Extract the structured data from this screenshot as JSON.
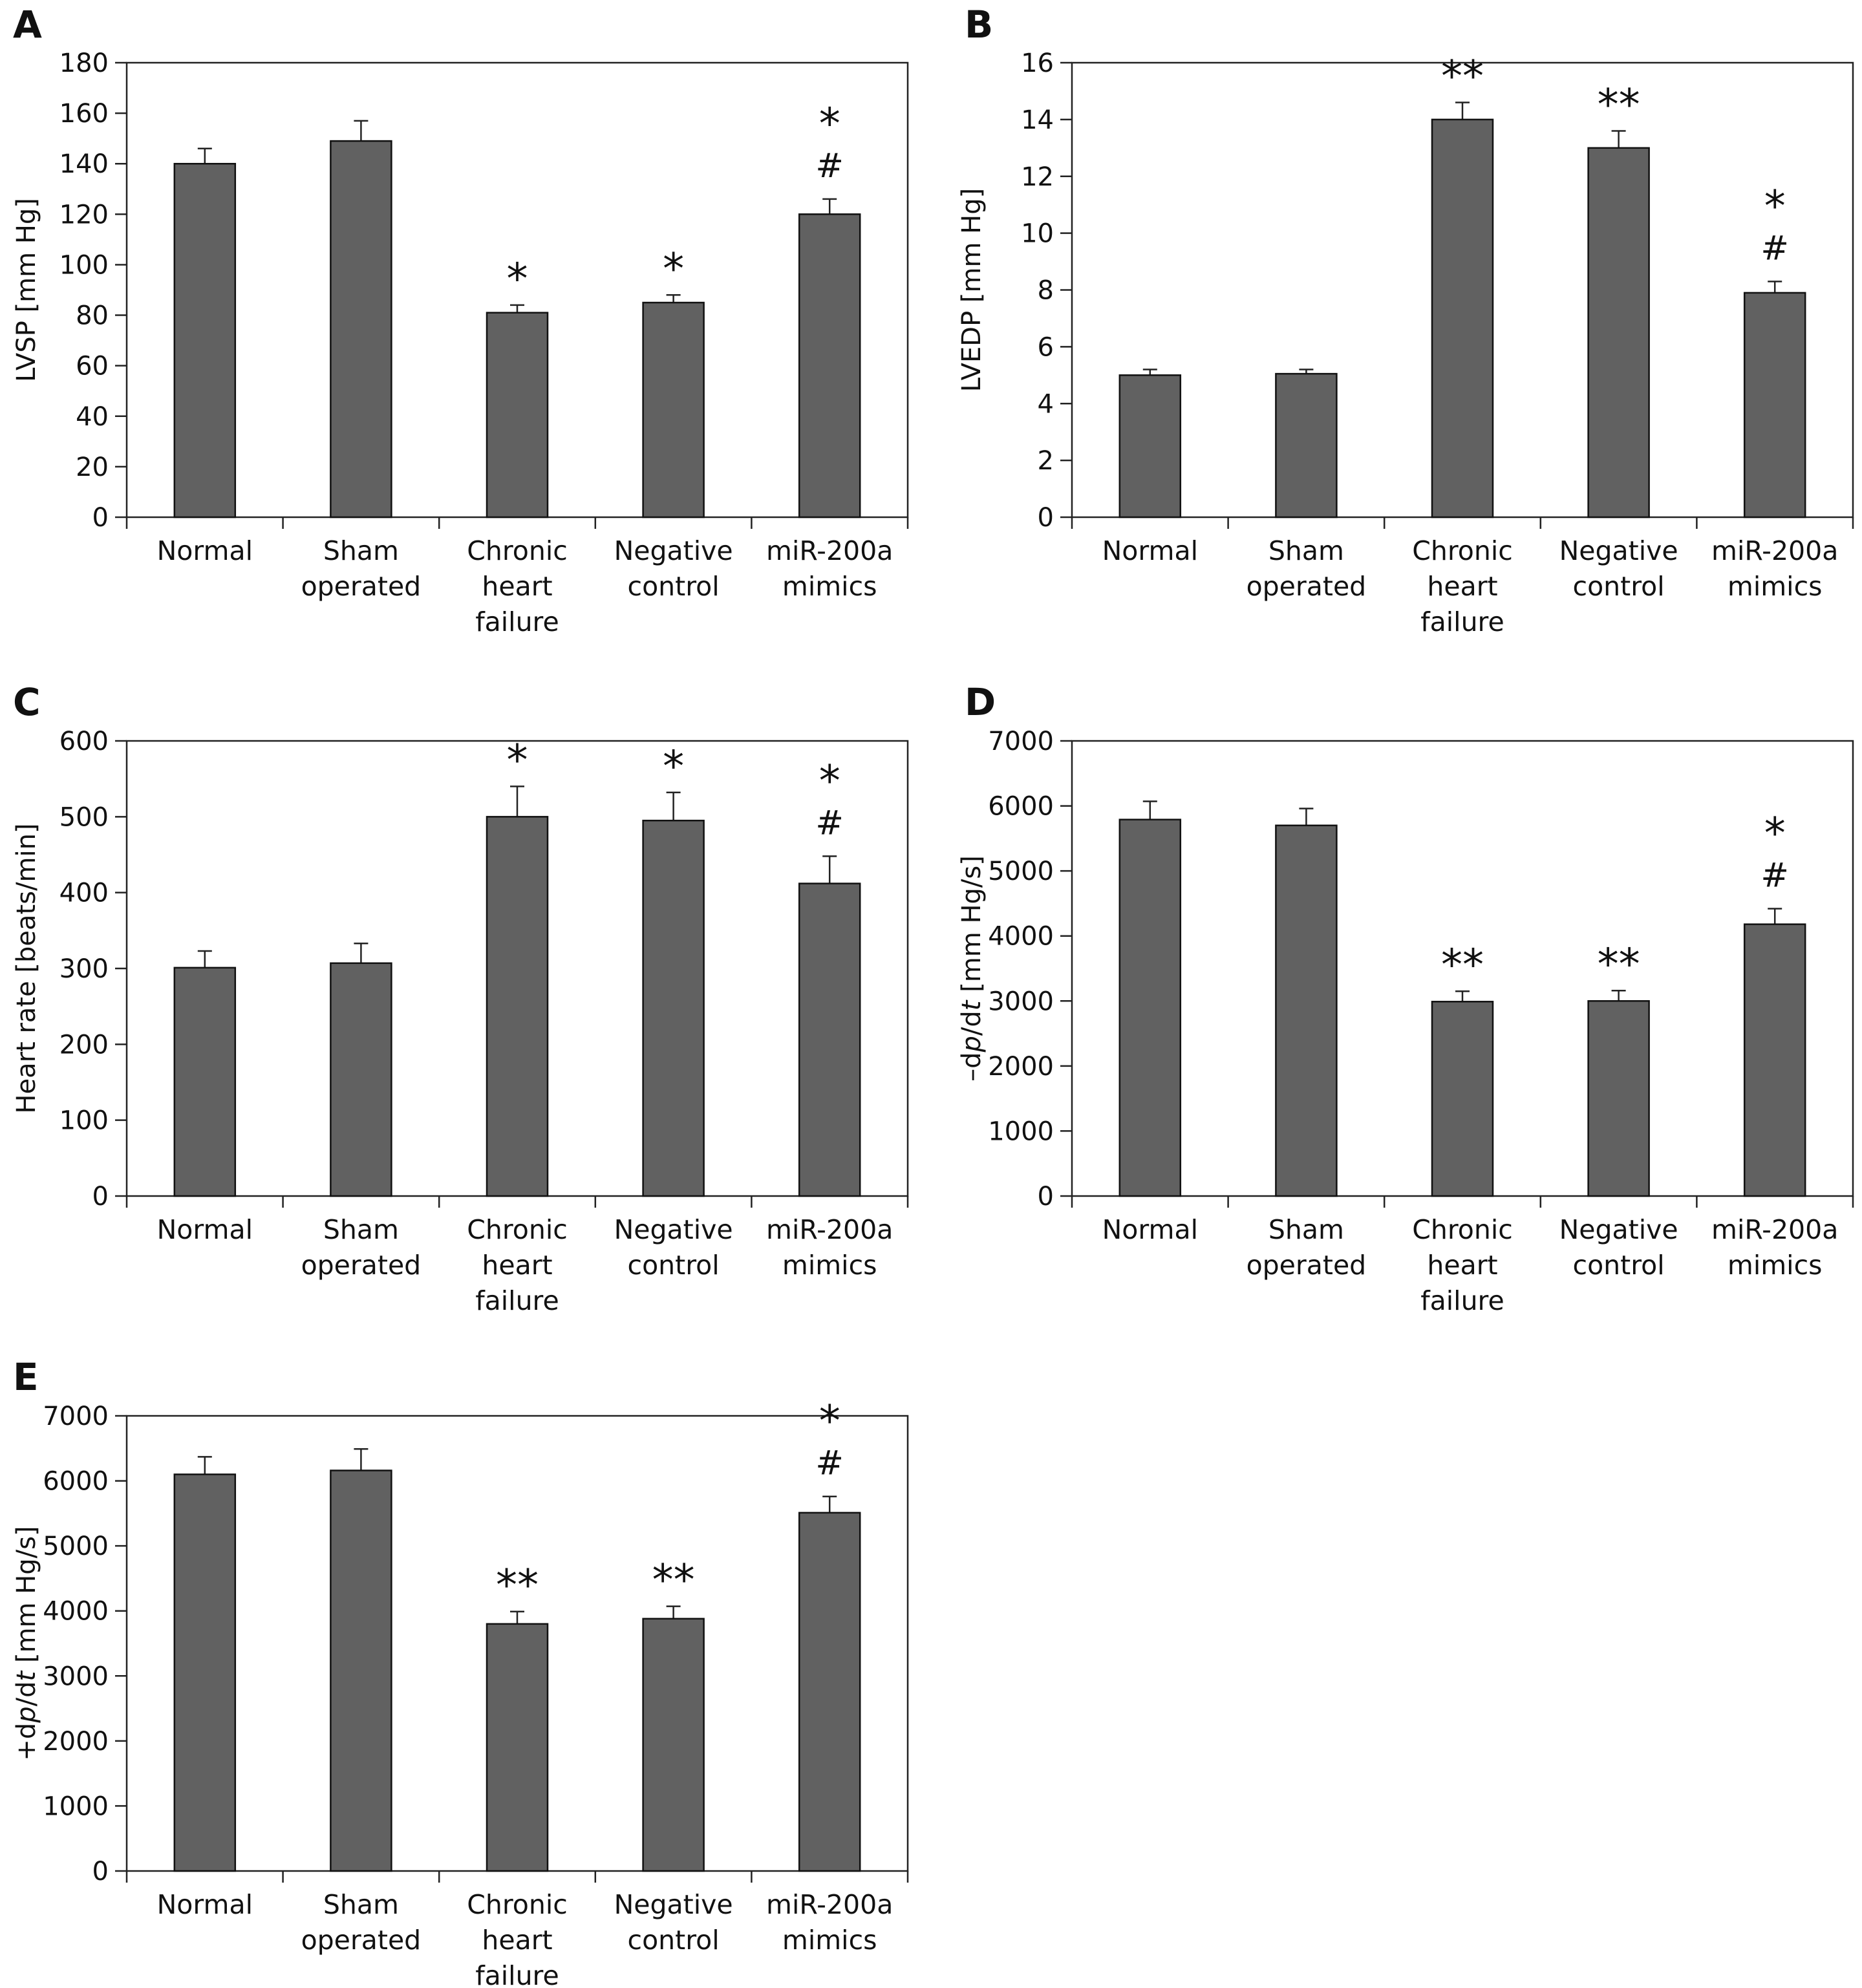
{
  "chart_data": [
    {
      "type": "bar",
      "panel": "A",
      "ylabel": "LVSP [mm Hg]",
      "ylim": [
        0,
        180
      ],
      "yticks": [
        0,
        20,
        40,
        60,
        80,
        100,
        120,
        140,
        160,
        180
      ],
      "categories": [
        [
          "Normal"
        ],
        [
          "Sham",
          "operated"
        ],
        [
          "Chronic",
          "heart",
          "failure"
        ],
        [
          "Negative",
          "control"
        ],
        [
          "miR-200a",
          "mimics"
        ]
      ],
      "values": [
        140,
        149,
        81,
        85,
        120
      ],
      "errors": [
        6,
        8,
        3,
        3,
        6
      ],
      "annotations": [
        [],
        [],
        [
          "*"
        ],
        [
          "*"
        ],
        [
          "*",
          "#"
        ]
      ],
      "color": "#616161",
      "grid": false
    },
    {
      "type": "bar",
      "panel": "B",
      "ylabel": "LVEDP [mm Hg]",
      "ylim": [
        0,
        16
      ],
      "yticks": [
        0,
        2,
        4,
        6,
        8,
        10,
        12,
        14,
        16
      ],
      "categories": [
        [
          "Normal"
        ],
        [
          "Sham",
          "operated"
        ],
        [
          "Chronic",
          "heart",
          "failure"
        ],
        [
          "Negative",
          "control"
        ],
        [
          "miR-200a",
          "mimics"
        ]
      ],
      "values": [
        5.0,
        5.05,
        14.0,
        13.0,
        7.9
      ],
      "errors": [
        0.2,
        0.15,
        0.6,
        0.6,
        0.4
      ],
      "annotations": [
        [],
        [],
        [
          "**"
        ],
        [
          "**"
        ],
        [
          "*",
          "#"
        ]
      ],
      "color": "#616161",
      "grid": false
    },
    {
      "type": "bar",
      "panel": "C",
      "ylabel": "Heart rate [beats/min]",
      "ylim": [
        0,
        600
      ],
      "yticks": [
        0,
        100,
        200,
        300,
        400,
        500,
        600
      ],
      "categories": [
        [
          "Normal"
        ],
        [
          "Sham",
          "operated"
        ],
        [
          "Chronic",
          "heart",
          "failure"
        ],
        [
          "Negative",
          "control"
        ],
        [
          "miR-200a",
          "mimics"
        ]
      ],
      "values": [
        301,
        307,
        500,
        495,
        412
      ],
      "errors": [
        22,
        26,
        40,
        37,
        36
      ],
      "annotations": [
        [],
        [],
        [
          "*"
        ],
        [
          "*"
        ],
        [
          "*",
          "#"
        ]
      ],
      "color": "#616161",
      "grid": false
    },
    {
      "type": "bar",
      "panel": "D",
      "ylabel": "–dp/dt [mm Hg/s]",
      "ylabel_parts": [
        [
          "–d",
          false
        ],
        [
          "p",
          true
        ],
        [
          "/d",
          false
        ],
        [
          "t",
          true
        ],
        [
          " [mm Hg/s]",
          false
        ]
      ],
      "ylim": [
        0,
        7000
      ],
      "yticks": [
        0,
        1000,
        2000,
        3000,
        4000,
        5000,
        6000,
        7000
      ],
      "categories": [
        [
          "Normal"
        ],
        [
          "Sham",
          "operated"
        ],
        [
          "Chronic",
          "heart",
          "failure"
        ],
        [
          "Negative",
          "control"
        ],
        [
          "miR-200a",
          "mimics"
        ]
      ],
      "values": [
        5790,
        5700,
        2990,
        3000,
        4180
      ],
      "errors": [
        280,
        260,
        160,
        160,
        240
      ],
      "annotations": [
        [],
        [],
        [
          "**"
        ],
        [
          "**"
        ],
        [
          "*",
          "#"
        ]
      ],
      "color": "#616161",
      "grid": false
    },
    {
      "type": "bar",
      "panel": "E",
      "ylabel": "+dp/dt [mm Hg/s]",
      "ylabel_parts": [
        [
          "+d",
          false
        ],
        [
          "p",
          true
        ],
        [
          "/d",
          false
        ],
        [
          "t",
          true
        ],
        [
          " [mm Hg/s]",
          false
        ]
      ],
      "ylim": [
        0,
        7000
      ],
      "yticks": [
        0,
        1000,
        2000,
        3000,
        4000,
        5000,
        6000,
        7000
      ],
      "categories": [
        [
          "Normal"
        ],
        [
          "Sham",
          "operated"
        ],
        [
          "Chronic",
          "heart",
          "failure"
        ],
        [
          "Negative",
          "control"
        ],
        [
          "miR-200a",
          "mimics"
        ]
      ],
      "values": [
        6100,
        6160,
        3800,
        3880,
        5510
      ],
      "errors": [
        270,
        330,
        190,
        190,
        250
      ],
      "annotations": [
        [],
        [],
        [
          "**"
        ],
        [
          "**"
        ],
        [
          "*",
          "#"
        ]
      ],
      "color": "#616161",
      "grid": false
    }
  ]
}
